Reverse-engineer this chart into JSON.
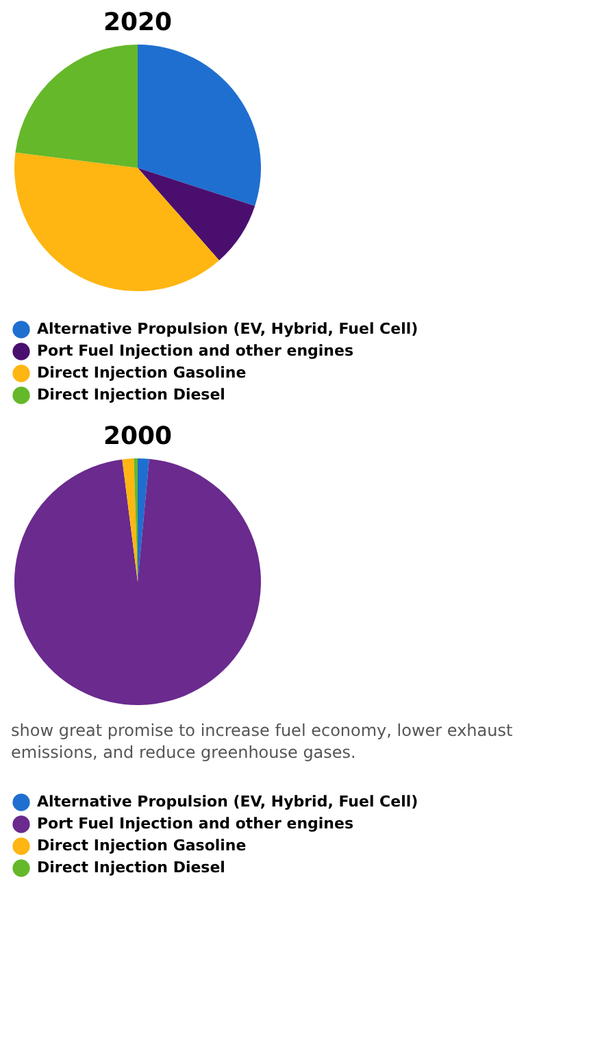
{
  "chart_data": [
    {
      "type": "pie",
      "title": "2020",
      "categories": [
        "Alternative Propulsion (EV, Hybrid, Fuel Cell)",
        "Port Fuel Injection and other engines",
        "Direct Injection Gasoline",
        "Direct Injection Diesel"
      ],
      "values": [
        30,
        8.5,
        38.5,
        23
      ],
      "colors": [
        "#1f6fd0",
        "#4a0f6e",
        "#ffb612",
        "#64b82a"
      ],
      "legend": "bottom"
    },
    {
      "type": "pie",
      "title": "2000",
      "categories": [
        "Alternative Propulsion (EV, Hybrid, Fuel Cell)",
        "Port Fuel Injection and other engines",
        "Direct Injection Gasoline",
        "Direct Injection Diesel"
      ],
      "values": [
        1.5,
        96.5,
        1.5,
        0.5
      ],
      "colors": [
        "#1f6fd0",
        "#6a2a8e",
        "#ffb612",
        "#64b82a"
      ],
      "legend": "bottom",
      "annotations": [
        "show great promise to increase fuel economy, lower exhaust emissions, and reduce greenhouse gases."
      ]
    }
  ]
}
